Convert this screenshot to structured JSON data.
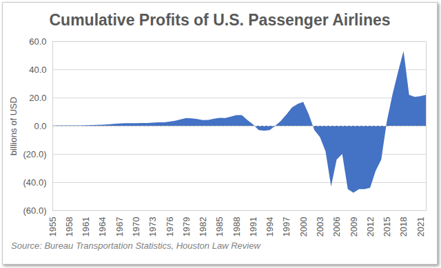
{
  "chart_data": {
    "type": "area",
    "title": "Cumulative Profits of U.S. Passenger Airlines",
    "y_label": "billions of USD",
    "caption": "Source: Bureau Transportation Statistics, Houston Law Review",
    "x": [
      1955,
      1956,
      1957,
      1958,
      1959,
      1960,
      1961,
      1962,
      1963,
      1964,
      1965,
      1966,
      1967,
      1968,
      1969,
      1970,
      1971,
      1972,
      1973,
      1974,
      1975,
      1976,
      1977,
      1978,
      1979,
      1980,
      1981,
      1982,
      1983,
      1984,
      1985,
      1986,
      1987,
      1988,
      1989,
      1990,
      1991,
      1992,
      1993,
      1994,
      1995,
      1996,
      1997,
      1998,
      1999,
      2000,
      2001,
      2002,
      2003,
      2004,
      2005,
      2006,
      2007,
      2008,
      2009,
      2010,
      2011,
      2012,
      2013,
      2014,
      2015,
      2016,
      2017,
      2018,
      2019,
      2020,
      2021,
      2022
    ],
    "values": [
      0.1,
      0.2,
      0.2,
      0.3,
      0.3,
      0.3,
      0.4,
      0.5,
      0.6,
      0.7,
      1.0,
      1.3,
      1.6,
      1.8,
      1.8,
      1.8,
      1.9,
      2.0,
      2.2,
      2.4,
      2.5,
      2.9,
      3.5,
      4.5,
      5.5,
      5.3,
      4.8,
      4.0,
      4.2,
      5.0,
      5.6,
      5.5,
      6.5,
      7.6,
      7.6,
      4.0,
      1.0,
      -3.0,
      -3.5,
      -3.0,
      0.0,
      3.5,
      8.0,
      13.0,
      15.5,
      17.0,
      8.0,
      -3.0,
      -8.0,
      -18.0,
      -43.0,
      -24.0,
      -20.0,
      -45.0,
      -47.5,
      -45.0,
      -45.0,
      -44.0,
      -32.0,
      -24.0,
      3.0,
      22.0,
      38.0,
      53.0,
      22.0,
      20.5,
      21.0,
      22.0
    ],
    "color": "#4472c4",
    "xlim": [
      1955,
      2022
    ],
    "xticks": [
      1955,
      1958,
      1961,
      1964,
      1967,
      1970,
      1973,
      1976,
      1979,
      1982,
      1985,
      1988,
      1991,
      1994,
      1997,
      2000,
      2003,
      2006,
      2009,
      2012,
      2015,
      2018,
      2021
    ],
    "ylim": [
      -60,
      60
    ],
    "yticks": [
      {
        "value": -60,
        "label": "(60.0)"
      },
      {
        "value": -40,
        "label": "(40.0)"
      },
      {
        "value": -20,
        "label": "(20.0)"
      },
      {
        "value": 0,
        "label": "0.0"
      },
      {
        "value": 20,
        "label": "20.0"
      },
      {
        "value": 40,
        "label": "40.0"
      },
      {
        "value": 60,
        "label": "60.0"
      }
    ],
    "grid": true
  }
}
